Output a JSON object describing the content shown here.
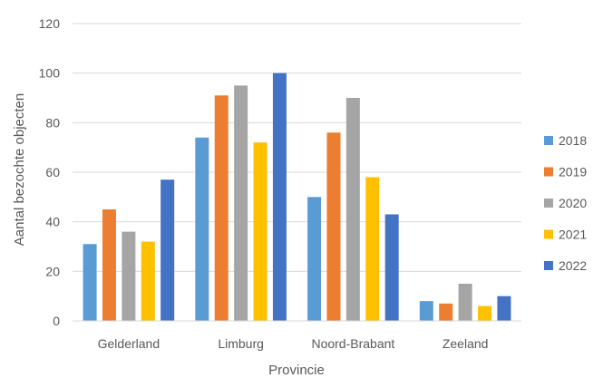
{
  "chart_data": {
    "type": "bar",
    "xlabel": "Provincie",
    "ylabel": "Aantal bezochte objecten",
    "ylim": [
      0,
      120
    ],
    "yticks": [
      "0",
      "20",
      "40",
      "60",
      "80",
      "100",
      "120"
    ],
    "grid": true,
    "legend_position": "right",
    "categories": [
      "Gelderland",
      "Limburg",
      "Noord-Brabant",
      "Zeeland"
    ],
    "series": [
      {
        "name": "2018",
        "color": "#5B9BD5",
        "values": [
          31,
          74,
          50,
          8
        ]
      },
      {
        "name": "2019",
        "color": "#ED7D31",
        "values": [
          45,
          91,
          76,
          7
        ]
      },
      {
        "name": "2020",
        "color": "#A5A5A5",
        "values": [
          36,
          95,
          90,
          15
        ]
      },
      {
        "name": "2021",
        "color": "#FFC000",
        "values": [
          32,
          72,
          58,
          6
        ]
      },
      {
        "name": "2022",
        "color": "#4472C4",
        "values": [
          57,
          100,
          43,
          10
        ]
      }
    ]
  }
}
